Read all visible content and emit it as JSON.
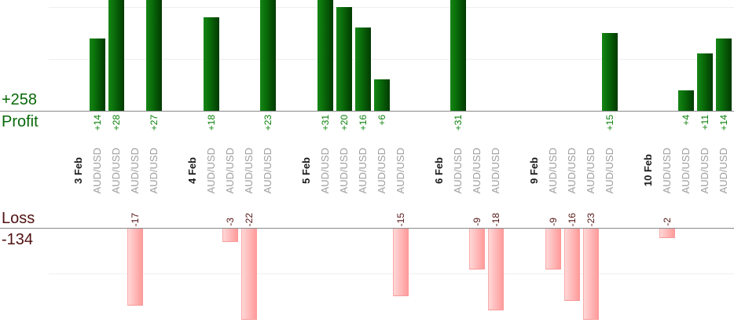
{
  "chart_data": {
    "type": "bar",
    "orientation": "vertical-dual-axis",
    "instrument": "AUD/USD",
    "profit_axis": {
      "label": "Profit",
      "total_label": "+258",
      "total": 258,
      "gridline_values": [
        10,
        20
      ],
      "ylim": [
        0,
        21
      ]
    },
    "loss_axis": {
      "label": "Loss",
      "total_label": "-134",
      "total": -134,
      "gridline_values": [
        10
      ],
      "ylim": [
        0,
        -20
      ]
    },
    "colors": {
      "profit_text": "#086808",
      "profit_value_text": "#0a800a",
      "loss_text": "#4f1111",
      "loss_value_text": "#541414",
      "date_text": "#1a1a1a",
      "instrument_text": "#9e9e9e",
      "axis_line": "#8a8a8a",
      "gridline": "#efefef",
      "profit_bar": "#0b730b",
      "loss_bar": "#ff9898"
    },
    "groups": [
      {
        "date": "3 Feb",
        "trades": [
          {
            "instrument": "AUD/USD",
            "value": 14,
            "label": "+14"
          },
          {
            "instrument": "AUD/USD",
            "value": 28,
            "label": "+28"
          },
          {
            "instrument": "AUD/USD",
            "value": -17,
            "label": "-17"
          },
          {
            "instrument": "AUD/USD",
            "value": 27,
            "label": "+27"
          }
        ]
      },
      {
        "date": "4 Feb",
        "trades": [
          {
            "instrument": "AUD/USD",
            "value": 18,
            "label": "+18"
          },
          {
            "instrument": "AUD/USD",
            "value": -3,
            "label": "-3"
          },
          {
            "instrument": "AUD/USD",
            "value": -22,
            "label": "-22"
          },
          {
            "instrument": "AUD/USD",
            "value": 23,
            "label": "+23"
          }
        ]
      },
      {
        "date": "5 Feb",
        "trades": [
          {
            "instrument": "AUD/USD",
            "value": 31,
            "label": "+31"
          },
          {
            "instrument": "AUD/USD",
            "value": 20,
            "label": "+20"
          },
          {
            "instrument": "AUD/USD",
            "value": 16,
            "label": "+16"
          },
          {
            "instrument": "AUD/USD",
            "value": 6,
            "label": "+6"
          },
          {
            "instrument": "AUD/USD",
            "value": -15,
            "label": "-15"
          }
        ]
      },
      {
        "date": "6 Feb",
        "trades": [
          {
            "instrument": "AUD/USD",
            "value": 31,
            "label": "+31"
          },
          {
            "instrument": "AUD/USD",
            "value": -9,
            "label": "-9"
          },
          {
            "instrument": "AUD/USD",
            "value": -18,
            "label": "-18"
          }
        ]
      },
      {
        "date": "9 Feb",
        "trades": [
          {
            "instrument": "AUD/USD",
            "value": -9,
            "label": "-9"
          },
          {
            "instrument": "AUD/USD",
            "value": -16,
            "label": "-16"
          },
          {
            "instrument": "AUD/USD",
            "value": -23,
            "label": "-23"
          },
          {
            "instrument": "AUD/USD",
            "value": 15,
            "label": "+15"
          }
        ]
      },
      {
        "date": "10 Feb",
        "trades": [
          {
            "instrument": "AUD/USD",
            "value": -2,
            "label": "-2"
          },
          {
            "instrument": "AUD/USD",
            "value": 4,
            "label": "+4"
          },
          {
            "instrument": "AUD/USD",
            "value": 11,
            "label": "+11"
          },
          {
            "instrument": "AUD/USD",
            "value": 14,
            "label": "+14"
          }
        ]
      }
    ]
  }
}
